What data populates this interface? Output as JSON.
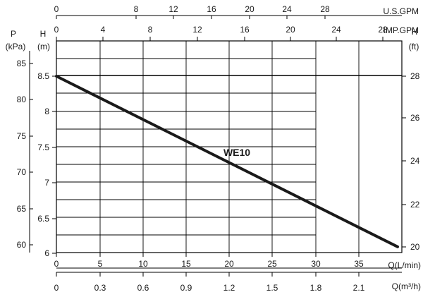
{
  "chart_data": {
    "type": "line",
    "title": "",
    "series": [
      {
        "name": "WE10",
        "x": [
          0,
          40
        ],
        "y": [
          8.5,
          6.12
        ]
      }
    ],
    "x_axis": {
      "label": "Q(L/min)",
      "range": [
        0,
        40
      ],
      "ticks": [
        "0",
        "5",
        "10",
        "15",
        "20",
        "25",
        "30",
        "35"
      ]
    },
    "x_axis_m3h": {
      "label": "Q(m³/h)",
      "ticks": [
        "0",
        "0.3",
        "0.6",
        "0.9",
        "1.2",
        "1.5",
        "1.8",
        "2.1"
      ]
    },
    "x_axis_usgpm": {
      "label": "U.S.GPM",
      "ticks": [
        "0",
        "8",
        "12",
        "16",
        "20",
        "24",
        "28"
      ]
    },
    "x_axis_impgpm": {
      "label": "IMP.GPM",
      "ticks": [
        "0",
        "4",
        "8",
        "12",
        "16",
        "20",
        "24",
        "28"
      ]
    },
    "y_axis_m": {
      "label": "H",
      "unit": "(m)",
      "range": [
        6,
        8.9
      ],
      "ticks": [
        "6",
        "6.5",
        "7",
        "7.5",
        "8",
        "8.5"
      ]
    },
    "y_axis_kpa": {
      "label": "P",
      "unit": "(kPa)",
      "ticks": [
        "60",
        "65",
        "70",
        "75",
        "80",
        "85"
      ]
    },
    "y_axis_ft": {
      "label": "H",
      "unit": "(ft)",
      "ticks": [
        "20",
        "22",
        "24",
        "26",
        "28"
      ]
    },
    "grid": true
  }
}
